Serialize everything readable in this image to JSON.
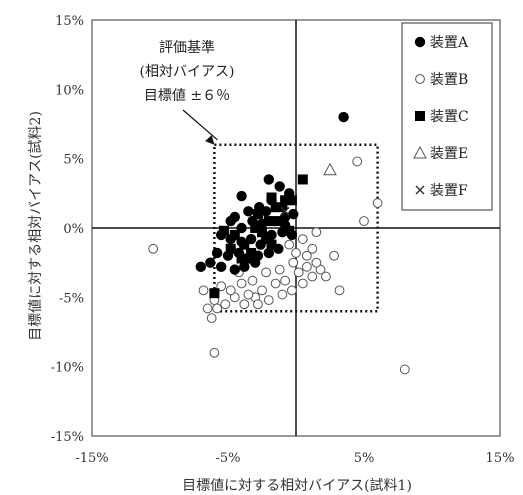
{
  "chart_data": {
    "type": "scatter",
    "xlabel": "目標値に対する相対バイアス(試料1)",
    "ylabel": "目標値に対する相対バイアス(試料2)",
    "xlim": [
      -15,
      15
    ],
    "ylim": [
      -15,
      15
    ],
    "x_tick_values": [
      -15,
      -5,
      5,
      15
    ],
    "x_tick_labels": [
      "-15%",
      "-5%",
      "5%",
      "15%"
    ],
    "y_tick_values": [
      15,
      10,
      5,
      0,
      -5,
      -10,
      -15
    ],
    "y_tick_labels": [
      "15%",
      "10%",
      "5%",
      "0%",
      "-5%",
      "-10%",
      "-15%"
    ],
    "grid": false,
    "reference_lines": {
      "x": 0,
      "y": 0
    },
    "evaluation_box": {
      "xmin": -6,
      "xmax": 6,
      "ymin": -6,
      "ymax": 6
    },
    "annotation": {
      "lines": [
        "評価基準",
        "(相対バイアス)",
        "目標値 ±６％"
      ],
      "arrow_target": [
        -6,
        6
      ]
    },
    "legend": {
      "position": "top-right",
      "entries": [
        "装置A",
        "装置B",
        "装置C",
        "装置E",
        "装置F"
      ]
    },
    "series": [
      {
        "name": "装置A",
        "marker": "filled-circle",
        "points": [
          [
            3.5,
            8
          ],
          [
            -4,
            2.3
          ],
          [
            -2,
            3.5
          ],
          [
            -1.2,
            3
          ],
          [
            -0.5,
            2.5
          ],
          [
            -3.5,
            1.2
          ],
          [
            -2.7,
            1.5
          ],
          [
            -1.8,
            2
          ],
          [
            -1,
            1.5
          ],
          [
            -4.8,
            0.5
          ],
          [
            -4,
            0
          ],
          [
            -3.2,
            0.5
          ],
          [
            -2.5,
            0.3
          ],
          [
            -1.5,
            0.5
          ],
          [
            -0.8,
            0.8
          ],
          [
            -0.2,
            1
          ],
          [
            -5.5,
            -0.5
          ],
          [
            -4.8,
            -0.8
          ],
          [
            -4,
            -1
          ],
          [
            -3.3,
            -0.8
          ],
          [
            -2.6,
            -1.2
          ],
          [
            -1.8,
            -0.5
          ],
          [
            -1,
            -0.3
          ],
          [
            -0.3,
            -0.5
          ],
          [
            -5.8,
            -1.8
          ],
          [
            -5,
            -2
          ],
          [
            -4.2,
            -1.8
          ],
          [
            -3.5,
            -2.2
          ],
          [
            -2.8,
            -2
          ],
          [
            -2,
            -1.8
          ],
          [
            -1.3,
            -1.5
          ],
          [
            -6.3,
            -2.5
          ],
          [
            -7,
            -2.8
          ],
          [
            -5.5,
            -2.8
          ],
          [
            -4.5,
            -3
          ],
          [
            -3.8,
            -2.8
          ],
          [
            -3,
            -2.5
          ],
          [
            -4.5,
            0.8
          ],
          [
            -2.2,
            1.2
          ],
          [
            -0.8,
            0.2
          ]
        ]
      },
      {
        "name": "装置B",
        "marker": "open-circle",
        "points": [
          [
            -10.5,
            -1.5
          ],
          [
            -6,
            -9
          ],
          [
            -6.5,
            -5.8
          ],
          [
            -6,
            -5.2
          ],
          [
            -5.2,
            -5.5
          ],
          [
            -4.5,
            -5
          ],
          [
            -3.8,
            -5.5
          ],
          [
            -3,
            -5
          ],
          [
            -2,
            -5.2
          ],
          [
            -1,
            -4.8
          ],
          [
            -0.3,
            -4.5
          ],
          [
            0.5,
            -4
          ],
          [
            1.2,
            -3.5
          ],
          [
            1.8,
            -3
          ],
          [
            1.5,
            -2.5
          ],
          [
            0.8,
            -2
          ],
          [
            0,
            -1.8
          ],
          [
            -0.5,
            -1.2
          ],
          [
            0.5,
            -0.8
          ],
          [
            1.2,
            -1.5
          ],
          [
            2.8,
            -2
          ],
          [
            2.2,
            -3.5
          ],
          [
            3.2,
            -4.5
          ],
          [
            4.5,
            4.8
          ],
          [
            5,
            0.5
          ],
          [
            6,
            1.8
          ],
          [
            8,
            -10.2
          ],
          [
            -6.8,
            -4.5
          ],
          [
            -6.2,
            -6.5
          ],
          [
            -5.5,
            -4.2
          ],
          [
            -4.8,
            -4.5
          ],
          [
            -4,
            -4
          ],
          [
            -3.2,
            -3.8
          ],
          [
            -2.5,
            -4.5
          ],
          [
            -1.5,
            -4
          ],
          [
            -0.8,
            -3.8
          ],
          [
            0.2,
            -3.2
          ],
          [
            0.8,
            -2.8
          ],
          [
            -0.2,
            -2.5
          ],
          [
            -1.2,
            -3
          ],
          [
            -2.2,
            -3.2
          ],
          [
            -3.5,
            -4.8
          ],
          [
            -5.8,
            -5.8
          ],
          [
            -2.8,
            -5.5
          ],
          [
            1.5,
            -0.3
          ],
          [
            -4.2,
            -3.2
          ]
        ]
      },
      {
        "name": "装置C",
        "marker": "filled-square",
        "points": [
          [
            0.5,
            3.5
          ],
          [
            -6,
            -4.7
          ],
          [
            -4.5,
            -0.5
          ],
          [
            -3.8,
            -1.2
          ],
          [
            -3,
            0
          ],
          [
            -2.2,
            -0.8
          ],
          [
            -1.5,
            1.5
          ],
          [
            -0.8,
            2
          ],
          [
            -0.3,
            2
          ],
          [
            -1.8,
            2.2
          ],
          [
            -2.5,
            -0.3
          ],
          [
            -3.3,
            -1.8
          ],
          [
            -4,
            -2.2
          ],
          [
            -1,
            0.5
          ],
          [
            -0.5,
            -0.2
          ],
          [
            -1.8,
            -1.2
          ],
          [
            -2.8,
            1
          ],
          [
            -4.8,
            -1.5
          ],
          [
            -5.3,
            -0.2
          ],
          [
            -2,
            0.5
          ]
        ]
      },
      {
        "name": "装置E",
        "marker": "open-triangle",
        "points": [
          [
            2.5,
            4.2
          ]
        ]
      },
      {
        "name": "装置F",
        "marker": "x",
        "points": [
          [
            -0.8,
            1.2
          ]
        ]
      }
    ]
  }
}
